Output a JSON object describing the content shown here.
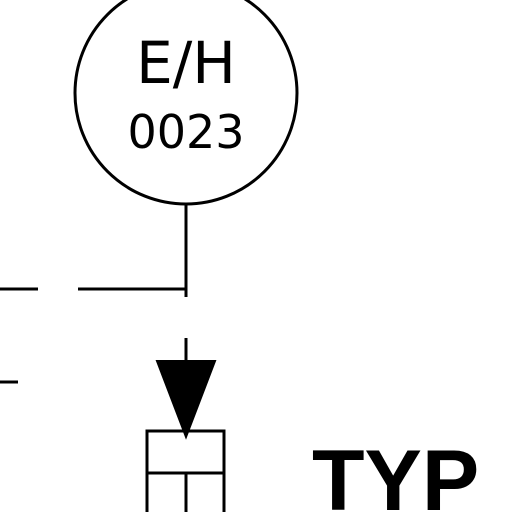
{
  "tag": {
    "top": "E/H",
    "number": "0023"
  },
  "note": {
    "text": "TYP"
  }
}
